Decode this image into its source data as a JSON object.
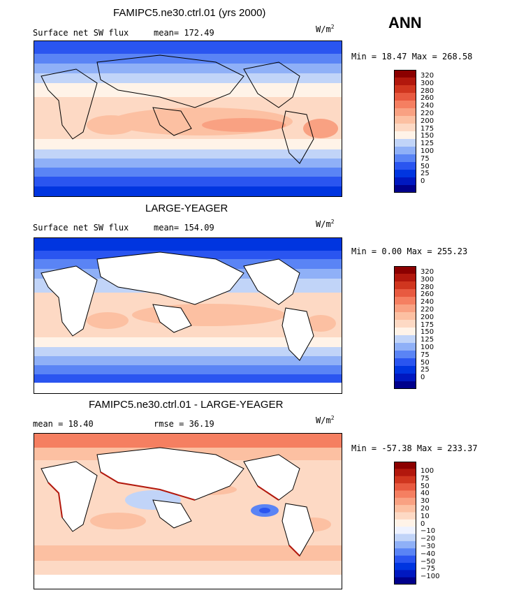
{
  "season": "ANN",
  "colors": {
    "sw": [
      "#00008b",
      "#0018c0",
      "#0035e0",
      "#2a55f0",
      "#5a84f5",
      "#8fb0f7",
      "#c1d4f8",
      "#fff3e8",
      "#fdd9c4",
      "#fcc0a2",
      "#f9a182",
      "#f57f61",
      "#e85a40",
      "#d0361f",
      "#b2180d",
      "#8b0000"
    ],
    "diff": [
      "#00008b",
      "#0018c0",
      "#0035e0",
      "#2a55f0",
      "#5a84f5",
      "#8fb0f7",
      "#c1d4f8",
      "#eef2ff",
      "#fff3e8",
      "#fdd9c4",
      "#fcc0a2",
      "#f9a182",
      "#f57f61",
      "#e85a40",
      "#d0361f",
      "#b2180d",
      "#8b0000"
    ]
  },
  "panels": [
    {
      "title": "FAMIPC5.ne30.ctrl.01 (yrs 2000)",
      "variable": "Surface net SW flux",
      "stat": "mean= 172.49",
      "units": "W/m",
      "units_sup": "2",
      "minmax": "Min =  18.47 Max = 268.58",
      "colorbar_levels": [
        "320",
        "300",
        "280",
        "260",
        "240",
        "220",
        "200",
        "175",
        "150",
        "125",
        "100",
        "75",
        "50",
        "25",
        "0"
      ]
    },
    {
      "title": "LARGE-YEAGER",
      "variable": "Surface net SW flux",
      "stat": "mean= 154.09",
      "units": "W/m",
      "units_sup": "2",
      "minmax": "Min =   0.00 Max = 255.23",
      "colorbar_levels": [
        "320",
        "300",
        "280",
        "260",
        "240",
        "220",
        "200",
        "175",
        "150",
        "125",
        "100",
        "75",
        "50",
        "25",
        "0"
      ]
    },
    {
      "title": "FAMIPC5.ne30.ctrl.01 - LARGE-YEAGER",
      "variable": "mean =  18.40",
      "stat": "rmse =  36.19",
      "units": "W/m",
      "units_sup": "2",
      "minmax": "Min = -57.38 Max = 233.37",
      "colorbar_levels": [
        "100",
        "75",
        "50",
        "40",
        "30",
        "20",
        "10",
        "0",
        "−10",
        "−20",
        "−30",
        "−40",
        "−50",
        "−75",
        "−100"
      ]
    }
  ],
  "chart_data": [
    {
      "type": "heatmap",
      "title": "FAMIPC5.ne30.ctrl.01 (yrs 2000)",
      "variable": "Surface net SW flux",
      "units": "W/m2",
      "mean": 172.49,
      "min": 18.47,
      "max": 268.58,
      "contour_levels": [
        0,
        25,
        50,
        75,
        100,
        125,
        150,
        175,
        200,
        220,
        240,
        260,
        280,
        300,
        320
      ]
    },
    {
      "type": "heatmap",
      "title": "LARGE-YEAGER",
      "variable": "Surface net SW flux",
      "units": "W/m2",
      "mean": 154.09,
      "min": 0.0,
      "max": 255.23,
      "contour_levels": [
        0,
        25,
        50,
        75,
        100,
        125,
        150,
        175,
        200,
        220,
        240,
        260,
        280,
        300,
        320
      ]
    },
    {
      "type": "heatmap",
      "title": "FAMIPC5.ne30.ctrl.01 - LARGE-YEAGER",
      "units": "W/m2",
      "mean": 18.4,
      "rmse": 36.19,
      "min": -57.38,
      "max": 233.37,
      "contour_levels": [
        -100,
        -75,
        -50,
        -40,
        -30,
        -20,
        -10,
        0,
        10,
        20,
        30,
        40,
        50,
        75,
        100
      ]
    }
  ]
}
